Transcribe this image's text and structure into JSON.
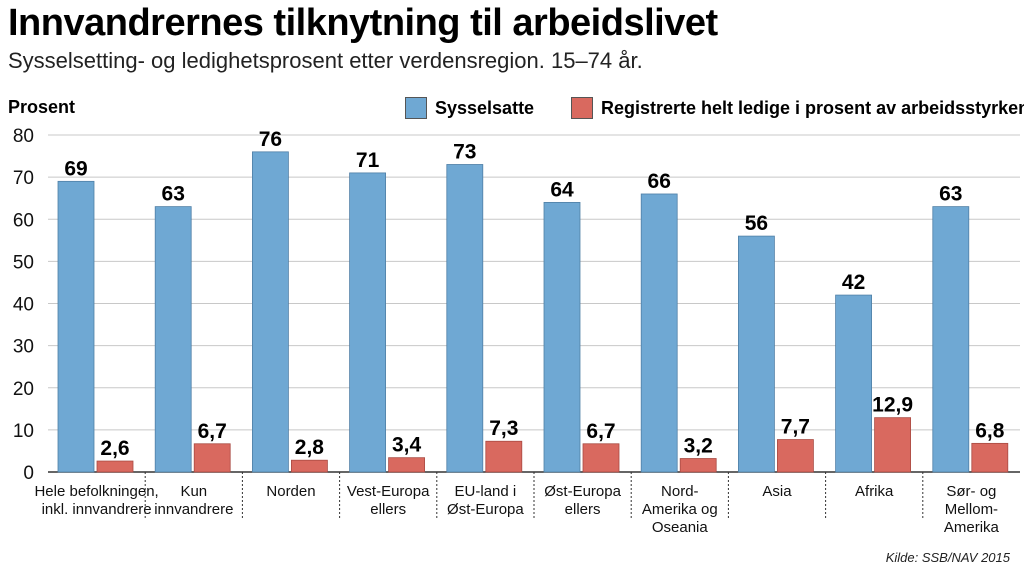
{
  "title": "Innvandrernes tilknytning til arbeidslivet",
  "subtitle": "Sysselsetting-  og ledighetsprosent etter verdensregion. 15–74 år.",
  "source": "Kilde: SSB/NAV 2015",
  "chart_data": {
    "type": "bar",
    "ylabel": "Prosent",
    "ylim": [
      0,
      80
    ],
    "yticks": [
      "0",
      "10",
      "20",
      "30",
      "40",
      "50",
      "60",
      "70",
      "80"
    ],
    "grid": true,
    "legend_position": "top",
    "categories": [
      [
        "Hele befolkningen,",
        "inkl. innvandrere"
      ],
      [
        "Kun",
        "innvandrere"
      ],
      [
        "Norden"
      ],
      [
        "Vest-Europa",
        "ellers"
      ],
      [
        "EU-land i",
        "Øst-Europa"
      ],
      [
        "Øst-Europa",
        "ellers"
      ],
      [
        "Nord-",
        "Amerika og",
        "Oseania"
      ],
      [
        "Asia"
      ],
      [
        "Afrika"
      ],
      [
        "Sør- og",
        "Mellom-",
        "Amerika"
      ]
    ],
    "series": [
      {
        "name": "Sysselsatte",
        "color": "#6fa8d3",
        "values": [
          69,
          63,
          76,
          71,
          73,
          64,
          66,
          56,
          42,
          63
        ],
        "labels": [
          "69",
          "63",
          "76",
          "71",
          "73",
          "64",
          "66",
          "56",
          "42",
          "63"
        ]
      },
      {
        "name": "Registrerte helt ledige i prosent av arbeidsstyrken",
        "color": "#d9695f",
        "values": [
          2.6,
          6.7,
          2.8,
          3.4,
          7.3,
          6.7,
          3.2,
          7.7,
          12.9,
          6.8
        ],
        "labels": [
          "2,6",
          "6,7",
          "2,8",
          "3,4",
          "7,3",
          "6,7",
          "3,2",
          "7,7",
          "12,9",
          "6,8"
        ]
      }
    ]
  }
}
